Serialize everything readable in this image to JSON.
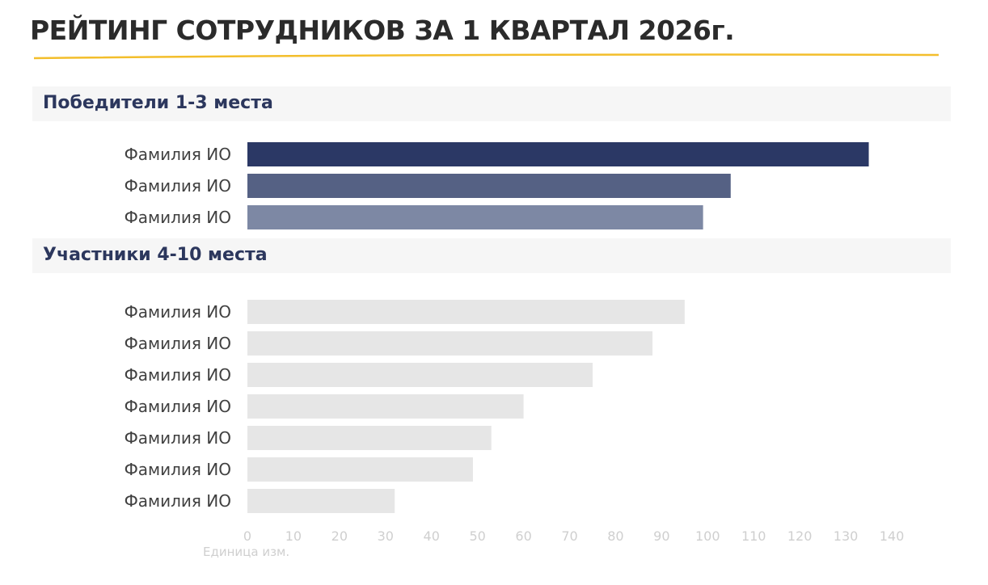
{
  "title": "РЕЙТИНГ СОТРУДНИКОВ ЗА 1 КВАРТАЛ 2026г.",
  "colors": {
    "title_text": "#2b2b2b",
    "underline": "#f3be2b",
    "section_text": "#2c375d",
    "section_bg": "#f6f6f6",
    "rank1": "#2b3865",
    "rank2": "#556184",
    "rank3": "#7d88a4",
    "participants": "#e6e6e6",
    "axis_text": "#cfcfcf",
    "label_text": "#404040"
  },
  "sections": {
    "winners": "Победители 1-3 места",
    "participants": "Участники 4-10 места"
  },
  "chart_data": {
    "type": "bar",
    "orientation": "horizontal",
    "xlim": [
      0,
      140
    ],
    "x_ticks": [
      0,
      10,
      20,
      30,
      40,
      50,
      60,
      70,
      80,
      90,
      100,
      110,
      120,
      130,
      140
    ],
    "xlabel": "Единица изм.",
    "groups": [
      {
        "name": "Победители 1-3 места",
        "categories": [
          "Фамилия ИО",
          "Фамилия ИО",
          "Фамилия ИО"
        ],
        "values": [
          135,
          105,
          99
        ],
        "colors": [
          "#2b3865",
          "#556184",
          "#7d88a4"
        ]
      },
      {
        "name": "Участники 4-10 места",
        "categories": [
          "Фамилия ИО",
          "Фамилия ИО",
          "Фамилия ИО",
          "Фамилия ИО",
          "Фамилия ИО",
          "Фамилия ИО",
          "Фамилия ИО"
        ],
        "values": [
          95,
          88,
          75,
          60,
          53,
          49,
          32
        ],
        "colors": [
          "#e6e6e6",
          "#e6e6e6",
          "#e6e6e6",
          "#e6e6e6",
          "#e6e6e6",
          "#e6e6e6",
          "#e6e6e6"
        ]
      }
    ],
    "grid": false,
    "legend": "none"
  }
}
